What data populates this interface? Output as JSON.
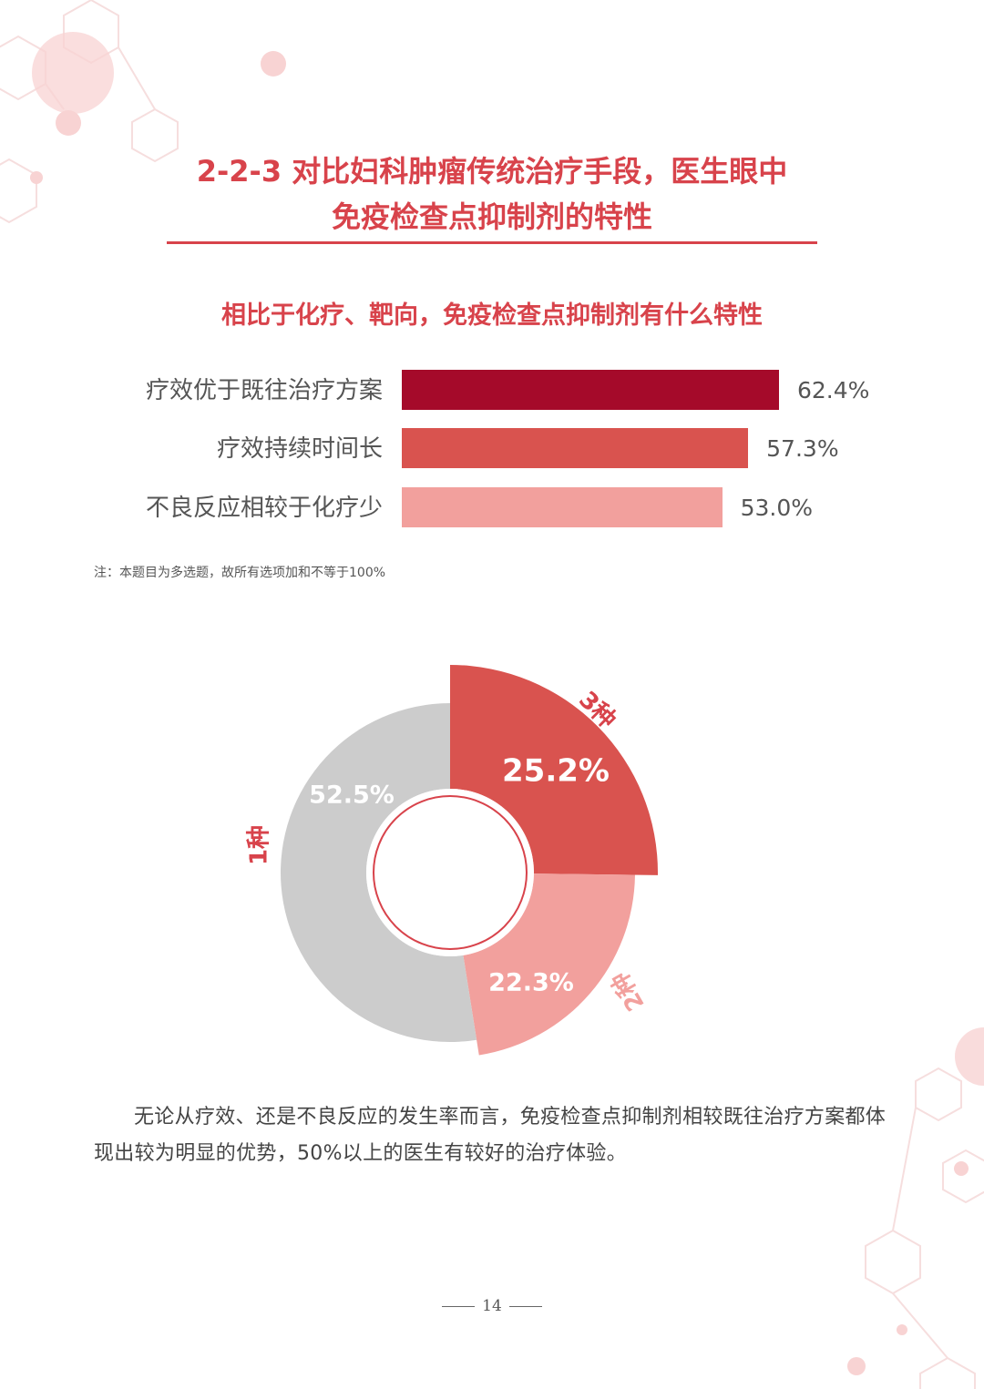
{
  "heading": {
    "line1": "2-2-3 对比妇科肿瘤传统治疗手段，医生眼中",
    "line2": "免疫检查点抑制剂的特性"
  },
  "colors": {
    "accent": "#d8434b",
    "bar_dark": "#a50a2a",
    "bar_mid": "#d9534f",
    "bar_light": "#f2a09d",
    "donut_grey": "#cccccc",
    "decoration": "#f7d3d3"
  },
  "chart_data": [
    {
      "type": "bar",
      "orientation": "horizontal",
      "title": "相比于化疗、靶向，免疫检查点抑制剂有什么特性",
      "categories": [
        "疗效优于既往治疗方案",
        "疗效持续时间长",
        "不良反应相较于化疗少"
      ],
      "values": [
        62.4,
        57.3,
        53.0
      ],
      "value_labels": [
        "62.4%",
        "57.3%",
        "53.0%"
      ],
      "unit": "%",
      "xlim": [
        0,
        100
      ],
      "grid": false
    },
    {
      "type": "pie",
      "style": "donut",
      "categories": [
        "3种",
        "2种",
        "1种"
      ],
      "values": [
        25.2,
        22.3,
        52.5
      ],
      "value_labels": [
        "25.2%",
        "22.3%",
        "52.5%"
      ],
      "unit": "%"
    }
  ],
  "note": "注：本题目为多选题，故所有选项加和不等于100%",
  "paragraph": "无论从疗效、还是不良反应的发生率而言，免疫检查点抑制剂相较既往治疗方案都体现出较为明显的优势，50%以上的医生有较好的治疗体验。",
  "page_number": "14"
}
